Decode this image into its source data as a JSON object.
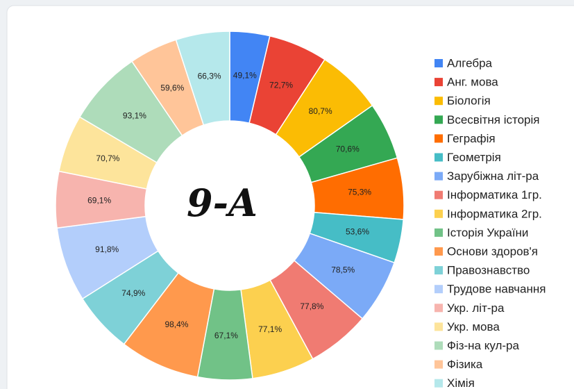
{
  "chart_data": {
    "type": "pie",
    "donut": true,
    "title": "9-A",
    "categories": [
      "Алгебра",
      "Анг. мова",
      "Біологія",
      "Всесвітня історія",
      "Геграфія",
      "Геометрія",
      "Зарубіжна літ-ра",
      "Інформатика 1гр.",
      "Інформатика 2гр.",
      "Історія України",
      "Основи здоров'я",
      "Правознавство",
      "Трудове навчання",
      "Укр. літ-ра",
      "Укр. мова",
      "Фіз-на кул-ра",
      "Фізика",
      "Хімія"
    ],
    "values": [
      49.1,
      72.7,
      80.7,
      70.6,
      75.3,
      53.6,
      78.5,
      77.8,
      77.1,
      67.1,
      98.4,
      74.9,
      91.8,
      69.1,
      70.7,
      93.1,
      59.6,
      66.3
    ],
    "value_labels": [
      "49,1%",
      "72,7%",
      "80,7%",
      "70,6%",
      "75,3%",
      "53,6%",
      "78,5%",
      "77,8%",
      "77,1%",
      "67,1%",
      "98,4%",
      "74,9%",
      "91,8%",
      "69,1%",
      "70,7%",
      "93,1%",
      "59,6%",
      "66,3%"
    ],
    "colors": [
      "#4285f4",
      "#ea4335",
      "#fbbc04",
      "#34a853",
      "#ff6d01",
      "#46bdc6",
      "#7baaf7",
      "#f07b72",
      "#fcd04f",
      "#71c287",
      "#ff994d",
      "#7ed1d7",
      "#b3cefb",
      "#f7b4ae",
      "#fde49b",
      "#aedcba",
      "#ffc599",
      "#b5e8eb"
    ],
    "legend": "right"
  }
}
